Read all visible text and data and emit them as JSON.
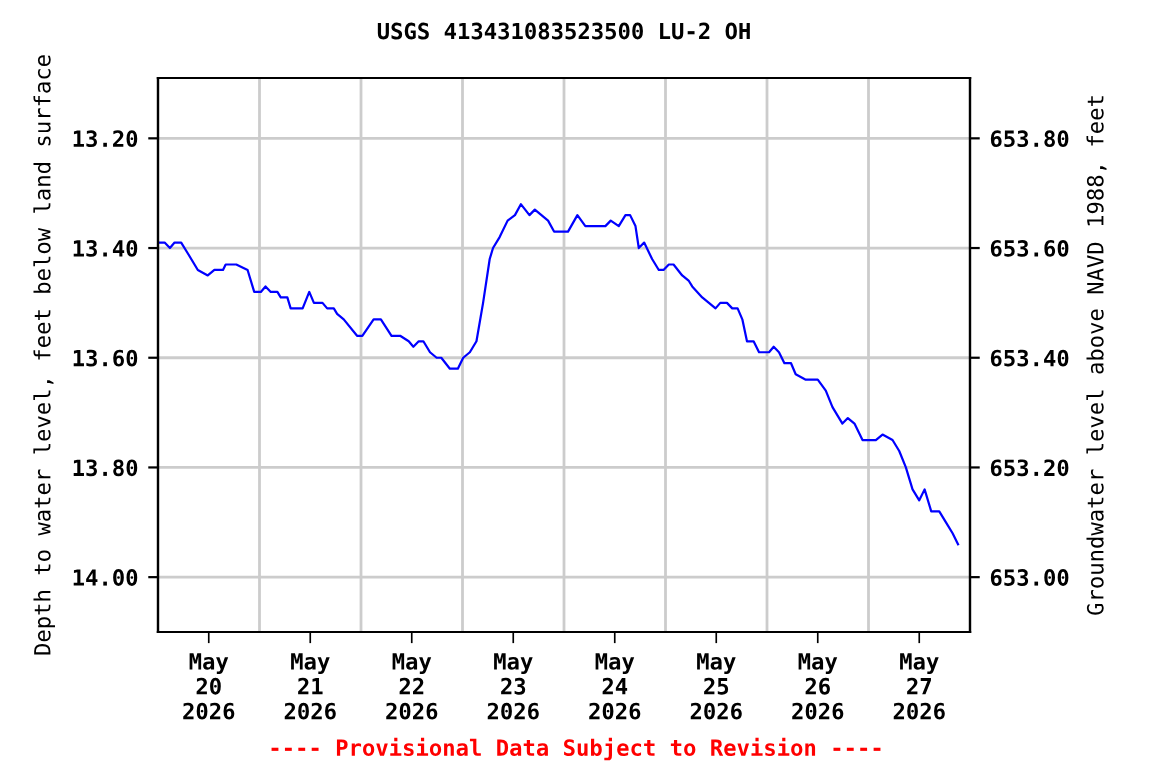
{
  "chart_data": {
    "type": "line",
    "title": "USGS 413431083523500 LU-2 OH",
    "ylabel": "Depth to water level, feet below land surface",
    "y2label": "Groundwater level above NAVD 1988, feet",
    "annotations": [
      "---- Provisional Data Subject to Revision ----"
    ],
    "x": [
      "2026-05-20T00:00",
      "2026-05-20T01:34",
      "2026-05-20T02:49",
      "2026-05-20T03:55",
      "2026-05-20T05:29",
      "2026-05-20T07:04",
      "2026-05-20T09:25",
      "2026-05-20T11:46",
      "2026-05-20T13:20",
      "2026-05-20T15:22",
      "2026-05-20T16:00",
      "2026-05-20T18:31",
      "2026-05-20T21:11",
      "2026-05-20T22:45",
      "2026-05-21T00:19",
      "2026-05-21T01:25",
      "2026-05-21T02:40",
      "2026-05-21T04:14",
      "2026-05-21T05:01",
      "2026-05-21T06:35",
      "2026-05-21T07:22",
      "2026-05-21T10:12",
      "2026-05-21T11:46",
      "2026-05-21T12:52",
      "2026-05-21T14:54",
      "2026-05-21T16:00",
      "2026-05-21T17:34",
      "2026-05-21T18:21",
      "2026-05-21T19:55",
      "2026-05-21T23:04",
      "2026-05-22T00:19",
      "2026-05-22T02:59",
      "2026-05-22T04:42",
      "2026-05-22T07:13",
      "2026-05-22T09:15",
      "2026-05-22T11:17",
      "2026-05-22T12:23",
      "2026-05-22T13:39",
      "2026-05-22T14:45",
      "2026-05-22T16:19",
      "2026-05-22T17:53",
      "2026-05-22T18:59",
      "2026-05-22T21:01",
      "2026-05-22T22:54",
      "2026-05-23T00:10",
      "2026-05-23T01:44",
      "2026-05-23T03:18",
      "2026-05-23T04:52",
      "2026-05-23T06:26",
      "2026-05-23T07:13",
      "2026-05-23T08:47",
      "2026-05-23T10:40",
      "2026-05-23T12:24",
      "2026-05-23T13:48",
      "2026-05-23T15:50",
      "2026-05-23T17:06",
      "2026-05-23T18:40",
      "2026-05-23T20:14",
      "2026-05-23T21:39",
      "2026-05-24T00:57",
      "2026-05-24T03:10",
      "2026-05-24T05:03",
      "2026-05-24T09:47",
      "2026-05-24T11:03",
      "2026-05-24T12:57",
      "2026-05-24T14:32",
      "2026-05-24T15:38",
      "2026-05-24T16:54",
      "2026-05-24T17:41",
      "2026-05-24T18:57",
      "2026-05-24T20:50",
      "2026-05-24T22:25",
      "2026-05-24T23:32",
      "2026-05-25T00:47",
      "2026-05-25T01:54",
      "2026-05-25T03:57",
      "2026-05-25T05:32",
      "2026-05-25T06:19",
      "2026-05-25T08:41",
      "2026-05-25T10:16",
      "2026-05-25T11:50",
      "2026-05-25T12:57",
      "2026-05-25T14:32",
      "2026-05-25T15:47",
      "2026-05-25T17:03",
      "2026-05-25T18:10",
      "2026-05-25T19:16",
      "2026-05-25T20:50",
      "2026-05-25T22:07",
      "2026-05-26T00:29",
      "2026-05-26T01:35",
      "2026-05-26T02:50",
      "2026-05-26T04:07",
      "2026-05-26T05:41",
      "2026-05-26T06:47",
      "2026-05-26T09:10",
      "2026-05-26T12:00",
      "2026-05-26T13:54",
      "2026-05-26T15:29",
      "2026-05-26T17:03",
      "2026-05-26T17:50",
      "2026-05-26T19:07",
      "2026-05-26T20:41",
      "2026-05-26T22:35",
      "2026-05-27T01:44",
      "2026-05-27T03:19",
      "2026-05-27T05:41",
      "2026-05-27T07:16",
      "2026-05-27T08:50",
      "2026-05-27T10:25",
      "2026-05-27T12:00",
      "2026-05-27T13:16",
      "2026-05-27T14:50",
      "2026-05-27T16:44",
      "2026-05-27T18:19",
      "2026-05-27T19:53",
      "2026-05-27T21:10"
    ],
    "series": [
      {
        "color": "#0000ff",
        "values": [
          13.39,
          13.39,
          13.4,
          13.39,
          13.39,
          13.41,
          13.44,
          13.45,
          13.44,
          13.44,
          13.43,
          13.43,
          13.44,
          13.48,
          13.48,
          13.47,
          13.48,
          13.48,
          13.49,
          13.49,
          13.51,
          13.51,
          13.48,
          13.5,
          13.5,
          13.51,
          13.51,
          13.52,
          13.53,
          13.56,
          13.56,
          13.53,
          13.53,
          13.56,
          13.56,
          13.57,
          13.58,
          13.57,
          13.57,
          13.59,
          13.6,
          13.6,
          13.62,
          13.62,
          13.6,
          13.59,
          13.57,
          13.5,
          13.42,
          13.4,
          13.38,
          13.35,
          13.34,
          13.32,
          13.34,
          13.33,
          13.34,
          13.35,
          13.37,
          13.37,
          13.34,
          13.36,
          13.36,
          13.35,
          13.36,
          13.34,
          13.34,
          13.36,
          13.4,
          13.39,
          13.42,
          13.44,
          13.44,
          13.43,
          13.43,
          13.45,
          13.46,
          13.47,
          13.49,
          13.5,
          13.51,
          13.5,
          13.5,
          13.51,
          13.51,
          13.53,
          13.57,
          13.57,
          13.59,
          13.59,
          13.58,
          13.59,
          13.61,
          13.61,
          13.63,
          13.64,
          13.64,
          13.66,
          13.69,
          13.71,
          13.72,
          13.71,
          13.72,
          13.75,
          13.75,
          13.74,
          13.75,
          13.77,
          13.8,
          13.84,
          13.86,
          13.84,
          13.88,
          13.88,
          13.9,
          13.92,
          13.94
        ]
      }
    ],
    "xlim": [
      "2026-05-20T00:00",
      "2026-05-28T00:00"
    ],
    "xticks": [
      {
        "value": "2026-05-20T12:00",
        "label": "May\n20\n2026"
      },
      {
        "value": "2026-05-21T00:00",
        "label": null
      },
      {
        "value": "2026-05-21T12:00",
        "label": "May\n21\n2026"
      },
      {
        "value": "2026-05-22T00:00",
        "label": null
      },
      {
        "value": "2026-05-22T12:00",
        "label": "May\n22\n2026"
      },
      {
        "value": "2026-05-23T00:00",
        "label": null
      },
      {
        "value": "2026-05-23T12:00",
        "label": "May\n23\n2026"
      },
      {
        "value": "2026-05-24T00:00",
        "label": null
      },
      {
        "value": "2026-05-24T12:00",
        "label": "May\n24\n2026"
      },
      {
        "value": "2026-05-25T00:00",
        "label": null
      },
      {
        "value": "2026-05-25T12:00",
        "label": "May\n25\n2026"
      },
      {
        "value": "2026-05-26T00:00",
        "label": null
      },
      {
        "value": "2026-05-26T12:00",
        "label": "May\n26\n2026"
      },
      {
        "value": "2026-05-27T00:00",
        "label": null
      },
      {
        "value": "2026-05-27T12:00",
        "label": "May\n27\n2026"
      }
    ],
    "ylim": [
      14.1,
      13.09
    ],
    "yticks": [
      {
        "value": 13.2,
        "label": "13.20"
      },
      {
        "value": 13.4,
        "label": "13.40"
      },
      {
        "value": 13.6,
        "label": "13.60"
      },
      {
        "value": 13.8,
        "label": "13.80"
      },
      {
        "value": 14.0,
        "label": "14.00"
      }
    ],
    "y2lim": [
      652.9,
      653.91
    ],
    "y2ticks": [
      {
        "value": 653.8,
        "label": "653.80"
      },
      {
        "value": 653.6,
        "label": "653.60"
      },
      {
        "value": 653.4,
        "label": "653.40"
      },
      {
        "value": 653.2,
        "label": "653.20"
      },
      {
        "value": 653.0,
        "label": "653.00"
      }
    ],
    "grid": true,
    "marker": "none",
    "line_style": "solid"
  }
}
